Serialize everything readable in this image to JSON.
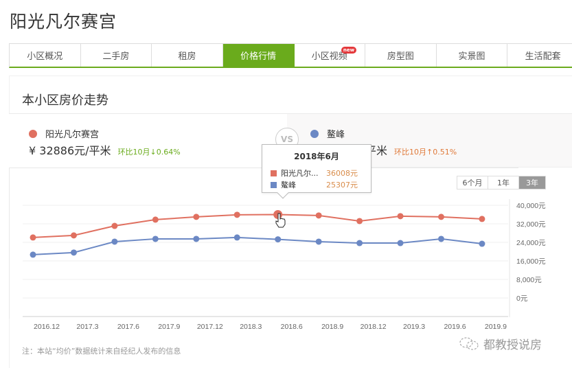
{
  "page": {
    "title": "阳光凡尔赛宫"
  },
  "tabs": [
    {
      "label": "小区概况",
      "active": false
    },
    {
      "label": "二手房",
      "active": false
    },
    {
      "label": "租房",
      "active": false
    },
    {
      "label": "价格行情",
      "active": true
    },
    {
      "label": "小区视频",
      "active": false,
      "badge": "new"
    },
    {
      "label": "房型图",
      "active": false
    },
    {
      "label": "实景图",
      "active": false
    },
    {
      "label": "生活配套",
      "active": false
    }
  ],
  "section": {
    "title": "本小区房价走势"
  },
  "compare": {
    "left": {
      "name": "阳光凡尔赛宫",
      "color": "#e07060",
      "price": "¥ 32886元/平米",
      "change": "环比10月↓0.64%",
      "change_color": "#6aab1c"
    },
    "vs": "VS",
    "right": {
      "name": "鳌峰",
      "color": "#6b88c4",
      "price_partial": "平米",
      "change": "环比10月↑0.51%",
      "change_color": "#e07a3a"
    }
  },
  "range": {
    "options": [
      "6个月",
      "1年",
      "3年"
    ],
    "selected": "3年"
  },
  "tooltip": {
    "title": "2018年6月",
    "rows": [
      {
        "name": "阳光凡尔...",
        "value": "36008元",
        "color": "#e07060"
      },
      {
        "name": "鳌峰",
        "value": "25307元",
        "color": "#6b88c4"
      }
    ]
  },
  "chart_data": {
    "type": "line",
    "title": "本小区房价走势",
    "xlabel": "",
    "ylabel": "",
    "categories": [
      "2016.12",
      "2017.3",
      "2017.6",
      "2017.9",
      "2017.12",
      "2018.3",
      "2018.6",
      "2018.9",
      "2018.12",
      "2019.3",
      "2019.6",
      "2019.9"
    ],
    "series": [
      {
        "name": "阳光凡尔赛宫",
        "color": "#e07060",
        "values": [
          26100,
          27000,
          31100,
          33800,
          35000,
          35900,
          36008,
          35600,
          33200,
          35300,
          35000,
          34100
        ]
      },
      {
        "name": "鳌峰",
        "color": "#6b88c4",
        "values": [
          18700,
          19600,
          24300,
          25500,
          25500,
          26100,
          25307,
          24300,
          23700,
          23700,
          25500,
          23400
        ]
      }
    ],
    "yticks": [
      "40,000元",
      "32,000元",
      "24,000元",
      "16,000元",
      "8,000元",
      "0元"
    ],
    "ylim": [
      0,
      40000
    ],
    "grid": true,
    "y_axis_position": "right",
    "highlighted_category": "2018.6"
  },
  "note": "注：本站“均价”数据统计来自经纪人发布的信息",
  "watermark": "都教授说房"
}
